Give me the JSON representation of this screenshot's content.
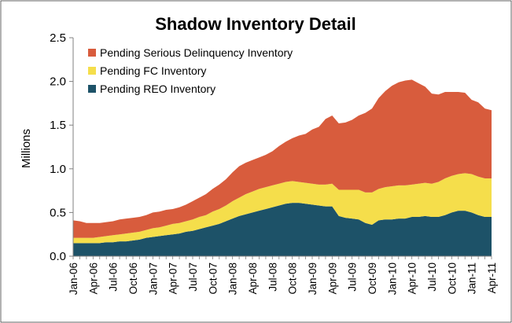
{
  "chart_data": {
    "type": "area",
    "stacked": true,
    "title": "Shadow Inventory Detail",
    "xlabel": "",
    "ylabel": "Millions",
    "ylim": [
      0,
      2.5
    ],
    "yticks": [
      "0.0",
      "0.5",
      "1.0",
      "1.5",
      "2.0",
      "2.5"
    ],
    "ytick_values": [
      0,
      0.5,
      1.0,
      1.5,
      2.0,
      2.5
    ],
    "grid": false,
    "legend_position": "top-left",
    "x_tick_labels": [
      "Jan-06",
      "Apr-06",
      "Jul-06",
      "Oct-06",
      "Jan-07",
      "Apr-07",
      "Jul-07",
      "Oct-07",
      "Jan-08",
      "Apr-08",
      "Jul-08",
      "Oct-08",
      "Jan-09",
      "Apr-09",
      "Jul-09",
      "Oct-09",
      "Jan-10",
      "Apr-10",
      "Jul-10",
      "Oct-10",
      "Jan-11",
      "Apr-11"
    ],
    "x_count": 64,
    "x_start": "Jan-06",
    "x_step": "month",
    "series": [
      {
        "name": "Pending REO Inventory",
        "color": "#1d5268",
        "values": [
          0.15,
          0.15,
          0.15,
          0.15,
          0.15,
          0.16,
          0.16,
          0.17,
          0.17,
          0.18,
          0.19,
          0.21,
          0.22,
          0.23,
          0.24,
          0.25,
          0.26,
          0.28,
          0.29,
          0.31,
          0.33,
          0.35,
          0.37,
          0.4,
          0.43,
          0.46,
          0.48,
          0.5,
          0.52,
          0.54,
          0.56,
          0.58,
          0.6,
          0.61,
          0.61,
          0.6,
          0.59,
          0.58,
          0.57,
          0.57,
          0.46,
          0.44,
          0.43,
          0.42,
          0.38,
          0.36,
          0.41,
          0.42,
          0.42,
          0.43,
          0.43,
          0.45,
          0.45,
          0.46,
          0.45,
          0.45,
          0.47,
          0.5,
          0.52,
          0.52,
          0.5,
          0.47,
          0.45,
          0.45
        ]
      },
      {
        "name": "Pending FC Inventory",
        "color": "#f5de4b",
        "values": [
          0.06,
          0.06,
          0.06,
          0.06,
          0.07,
          0.07,
          0.08,
          0.08,
          0.09,
          0.09,
          0.09,
          0.09,
          0.1,
          0.1,
          0.11,
          0.12,
          0.12,
          0.12,
          0.13,
          0.14,
          0.14,
          0.16,
          0.17,
          0.18,
          0.2,
          0.21,
          0.23,
          0.24,
          0.25,
          0.25,
          0.25,
          0.25,
          0.25,
          0.25,
          0.24,
          0.24,
          0.24,
          0.24,
          0.25,
          0.26,
          0.3,
          0.32,
          0.33,
          0.34,
          0.35,
          0.37,
          0.36,
          0.37,
          0.38,
          0.38,
          0.38,
          0.37,
          0.38,
          0.38,
          0.38,
          0.4,
          0.42,
          0.42,
          0.42,
          0.43,
          0.44,
          0.44,
          0.44,
          0.44
        ]
      },
      {
        "name": "Pending Serious Delinquency Inventory",
        "color": "#d85c3d",
        "values": [
          0.2,
          0.19,
          0.17,
          0.17,
          0.16,
          0.16,
          0.16,
          0.17,
          0.17,
          0.17,
          0.17,
          0.17,
          0.18,
          0.18,
          0.18,
          0.17,
          0.18,
          0.19,
          0.21,
          0.22,
          0.24,
          0.26,
          0.28,
          0.3,
          0.33,
          0.36,
          0.36,
          0.36,
          0.36,
          0.37,
          0.39,
          0.43,
          0.46,
          0.49,
          0.53,
          0.56,
          0.62,
          0.66,
          0.75,
          0.78,
          0.76,
          0.77,
          0.8,
          0.85,
          0.91,
          0.96,
          1.04,
          1.1,
          1.15,
          1.18,
          1.2,
          1.2,
          1.15,
          1.1,
          1.03,
          1.0,
          0.99,
          0.96,
          0.94,
          0.92,
          0.85,
          0.85,
          0.8,
          0.78
        ]
      }
    ]
  }
}
